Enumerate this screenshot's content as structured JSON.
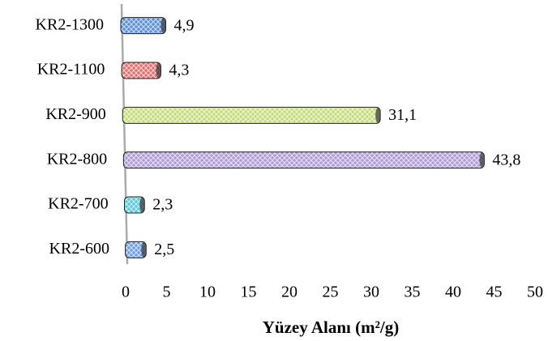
{
  "chart_data": {
    "type": "bar",
    "orientation": "horizontal",
    "x_label": "Yüzey Alanı (m²/g)",
    "categories": [
      "KR2-1300",
      "KR2-1100",
      "KR2-900",
      "KR2-800",
      "KR2-700",
      "KR2-600"
    ],
    "values": [
      4.9,
      4.3,
      31.1,
      43.8,
      2.3,
      2.5
    ],
    "value_labels": [
      "4,9",
      "4,3",
      "31,1",
      "43,8",
      "2,3",
      "2,5"
    ],
    "colors": [
      "#5b8fd6",
      "#e07070",
      "#c5dc7a",
      "#b09ad6",
      "#5cc8d8",
      "#6f9ee0"
    ],
    "xlim": [
      0,
      50
    ],
    "xticks": [
      0,
      5,
      10,
      15,
      20,
      25,
      30,
      35,
      40,
      45,
      50
    ],
    "grid": false
  }
}
